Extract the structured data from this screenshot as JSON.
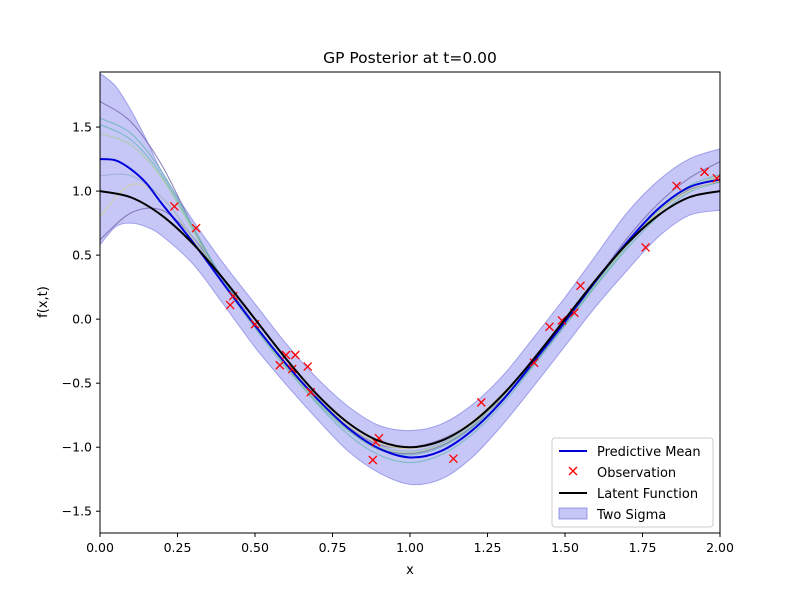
{
  "chart_data": {
    "type": "line",
    "title": "GP Posterior at t=0.00",
    "xlabel": "x",
    "ylabel": "f(x,t)",
    "xlim": [
      0.0,
      2.0
    ],
    "ylim": [
      -1.67,
      1.93
    ],
    "xticks": [
      0.0,
      0.25,
      0.5,
      0.75,
      1.0,
      1.25,
      1.5,
      1.75,
      2.0
    ],
    "xtick_labels": [
      "0.00",
      "0.25",
      "0.50",
      "0.75",
      "1.00",
      "1.25",
      "1.50",
      "1.75",
      "2.00"
    ],
    "yticks": [
      -1.5,
      -1.0,
      -0.5,
      0.0,
      0.5,
      1.0,
      1.5
    ],
    "ytick_labels": [
      "−1.5",
      "−1.0",
      "−0.5",
      "0.0",
      "0.5",
      "1.0",
      "1.5"
    ],
    "grid": false,
    "legend_position": "bottom-right",
    "legend": [
      {
        "label": "Predictive Mean",
        "kind": "line",
        "color": "#0000dd"
      },
      {
        "label": "Observation",
        "kind": "marker",
        "color": "#ff0000"
      },
      {
        "label": "Latent Function",
        "kind": "line",
        "color": "#000000"
      },
      {
        "label": "Two Sigma",
        "kind": "patch",
        "color": "#8080ee"
      }
    ],
    "latent_function": {
      "name": "Latent Function",
      "color": "#000000",
      "x": [
        0.0,
        0.1,
        0.2,
        0.3,
        0.4,
        0.5,
        0.6,
        0.7,
        0.8,
        0.9,
        1.0,
        1.1,
        1.2,
        1.3,
        1.4,
        1.5,
        1.6,
        1.7,
        1.8,
        1.9,
        2.0
      ],
      "y": [
        1.0,
        0.951,
        0.809,
        0.588,
        0.309,
        0.0,
        -0.309,
        -0.588,
        -0.809,
        -0.951,
        -1.0,
        -0.951,
        -0.809,
        -0.588,
        -0.309,
        0.0,
        0.309,
        0.588,
        0.809,
        0.951,
        1.0
      ]
    },
    "predictive_mean": {
      "name": "Predictive Mean",
      "color": "#0000dd",
      "x": [
        0.0,
        0.05,
        0.1,
        0.15,
        0.2,
        0.3,
        0.4,
        0.5,
        0.6,
        0.7,
        0.8,
        0.9,
        1.0,
        1.1,
        1.2,
        1.3,
        1.4,
        1.5,
        1.6,
        1.7,
        1.8,
        1.9,
        2.0
      ],
      "y": [
        1.25,
        1.24,
        1.17,
        1.06,
        0.9,
        0.6,
        0.27,
        -0.05,
        -0.35,
        -0.62,
        -0.85,
        -1.01,
        -1.08,
        -1.03,
        -0.87,
        -0.63,
        -0.33,
        -0.02,
        0.3,
        0.6,
        0.86,
        1.03,
        1.09
      ]
    },
    "two_sigma": {
      "name": "Two Sigma",
      "color": "#8080ee",
      "x": [
        0.0,
        0.05,
        0.1,
        0.15,
        0.2,
        0.3,
        0.4,
        0.5,
        0.6,
        0.7,
        0.8,
        0.9,
        1.0,
        1.1,
        1.2,
        1.3,
        1.4,
        1.5,
        1.6,
        1.7,
        1.8,
        1.9,
        2.0
      ],
      "upper": [
        1.92,
        1.82,
        1.63,
        1.4,
        1.15,
        0.77,
        0.43,
        0.12,
        -0.19,
        -0.46,
        -0.68,
        -0.83,
        -0.87,
        -0.82,
        -0.67,
        -0.44,
        -0.14,
        0.17,
        0.5,
        0.83,
        1.08,
        1.25,
        1.33
      ],
      "lower": [
        0.58,
        0.72,
        0.75,
        0.72,
        0.65,
        0.43,
        0.11,
        -0.22,
        -0.51,
        -0.78,
        -1.03,
        -1.2,
        -1.29,
        -1.25,
        -1.08,
        -0.82,
        -0.52,
        -0.21,
        0.1,
        0.38,
        0.64,
        0.81,
        0.85
      ]
    },
    "sample_paths": {
      "x": [
        0.0,
        0.1,
        0.2,
        0.3,
        0.4,
        0.5,
        0.6,
        0.7,
        0.8,
        0.9,
        1.0,
        1.1,
        1.2,
        1.3,
        1.4,
        1.5,
        1.6,
        1.7,
        1.8,
        1.9,
        2.0
      ],
      "paths": [
        {
          "color": "#7a6fb0",
          "y": [
            1.7,
            1.54,
            1.2,
            0.72,
            0.28,
            -0.05,
            -0.35,
            -0.61,
            -0.84,
            -0.98,
            -1.0,
            -0.94,
            -0.81,
            -0.62,
            -0.35,
            -0.04,
            0.3,
            0.63,
            0.9,
            1.1,
            1.23
          ]
        },
        {
          "color": "#7a6fb0",
          "y": [
            0.62,
            0.83,
            0.85,
            0.64,
            0.3,
            -0.04,
            -0.36,
            -0.63,
            -0.86,
            -1.01,
            -1.05,
            -0.99,
            -0.84,
            -0.6,
            -0.3,
            0.0,
            0.31,
            0.6,
            0.84,
            1.01,
            1.07
          ]
        },
        {
          "color": "#6fb8b8",
          "y": [
            1.57,
            1.45,
            1.15,
            0.72,
            0.3,
            -0.05,
            -0.37,
            -0.66,
            -0.9,
            -1.06,
            -1.12,
            -1.06,
            -0.9,
            -0.66,
            -0.36,
            -0.05,
            0.27,
            0.57,
            0.84,
            1.04,
            1.13
          ]
        },
        {
          "color": "#6fb8b8",
          "y": [
            1.52,
            1.4,
            1.12,
            0.7,
            0.27,
            -0.07,
            -0.38,
            -0.65,
            -0.87,
            -1.02,
            -1.06,
            -1.0,
            -0.85,
            -0.63,
            -0.35,
            -0.05,
            0.26,
            0.55,
            0.8,
            0.99,
            1.07
          ]
        },
        {
          "color": "#a8cf9a",
          "y": [
            1.45,
            1.36,
            1.1,
            0.69,
            0.27,
            -0.06,
            -0.37,
            -0.64,
            -0.86,
            -1.0,
            -1.04,
            -0.98,
            -0.83,
            -0.61,
            -0.33,
            -0.03,
            0.28,
            0.58,
            0.84,
            1.02,
            1.12
          ]
        },
        {
          "color": "#cfcf9a",
          "y": [
            0.8,
            1.05,
            0.95,
            0.62,
            0.27,
            -0.04,
            -0.34,
            -0.61,
            -0.83,
            -0.97,
            -1.01,
            -0.95,
            -0.8,
            -0.58,
            -0.31,
            -0.02,
            0.29,
            0.58,
            0.83,
            1.0,
            1.08
          ]
        },
        {
          "color": "#9ab0cf",
          "y": [
            1.12,
            1.12,
            0.95,
            0.64,
            0.28,
            -0.04,
            -0.35,
            -0.63,
            -0.85,
            -0.99,
            -1.03,
            -0.97,
            -0.82,
            -0.6,
            -0.32,
            -0.02,
            0.29,
            0.59,
            0.85,
            1.03,
            1.1
          ]
        }
      ]
    },
    "observations": {
      "name": "Observation",
      "color": "#ff0000",
      "x": [
        0.24,
        0.31,
        0.42,
        0.43,
        0.5,
        0.58,
        0.6,
        0.62,
        0.63,
        0.67,
        0.68,
        0.88,
        0.89,
        0.9,
        1.14,
        1.23,
        1.4,
        1.45,
        1.49,
        1.53,
        1.55,
        1.76,
        1.86,
        1.95,
        1.99
      ],
      "y": [
        0.88,
        0.71,
        0.11,
        0.18,
        -0.04,
        -0.36,
        -0.28,
        -0.39,
        -0.28,
        -0.37,
        -0.57,
        -1.1,
        -0.96,
        -0.93,
        -1.09,
        -0.65,
        -0.34,
        -0.06,
        -0.01,
        0.05,
        0.26,
        0.56,
        1.04,
        1.15,
        1.1
      ]
    }
  }
}
